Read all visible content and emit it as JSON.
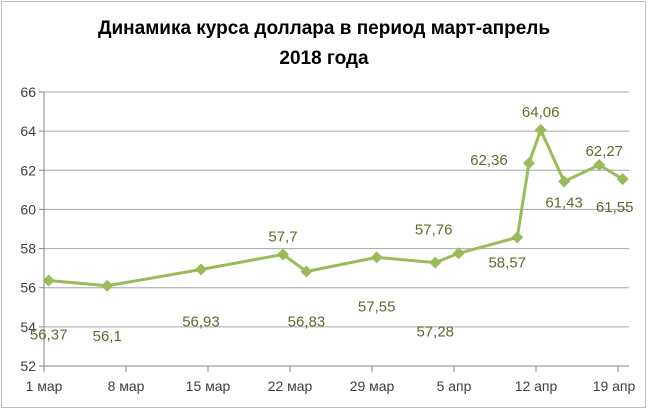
{
  "chart_data": {
    "type": "line",
    "title_line1": "Динамика курса доллара в период март-апрель",
    "title_line2": "2018 года",
    "xlabel": "",
    "ylabel": "",
    "ylim": [
      52,
      66
    ],
    "yticks": [
      "52",
      "54",
      "56",
      "58",
      "60",
      "62",
      "64",
      "66"
    ],
    "xtick_labels": [
      "1 мар",
      "8 мар",
      "15 мар",
      "22 мар",
      "29 мар",
      "5 апр",
      "12 апр",
      "19 апр"
    ],
    "grid": true,
    "series_color": "#9bbb59",
    "label_color": "#5f6b2e",
    "x": [
      "2018-03-01",
      "2018-03-06",
      "2018-03-14",
      "2018-03-21",
      "2018-03-23",
      "2018-03-29",
      "2018-04-03",
      "2018-04-05",
      "2018-04-10",
      "2018-04-11",
      "2018-04-12",
      "2018-04-14",
      "2018-04-17",
      "2018-04-19"
    ],
    "values": [
      56.37,
      56.1,
      56.93,
      57.7,
      56.83,
      57.55,
      57.28,
      57.76,
      58.57,
      62.36,
      64.06,
      61.43,
      62.27,
      61.55
    ],
    "data_labels": [
      "56,37",
      "56,1",
      "56,93",
      "57,7",
      "56,83",
      "57,55",
      "57,28",
      "57,76",
      "58,57",
      "62,36",
      "64,06",
      "61,43",
      "62,27",
      "61,55"
    ]
  }
}
